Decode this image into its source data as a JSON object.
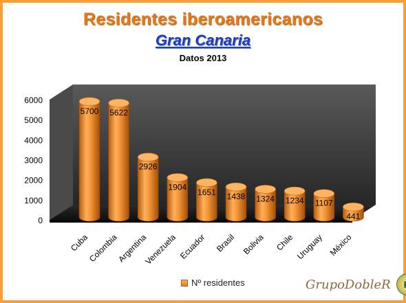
{
  "chart_data": {
    "type": "bar",
    "title": "Residentes iberoamericanos",
    "subtitle": "Gran Canaria",
    "subtitle2": "Datos 2013",
    "categories": [
      "Cuba",
      "Colombia",
      "Argentina",
      "Venezuela",
      "Ecuador",
      "Brasil",
      "Bolivia",
      "Chile",
      "Uruguay",
      "México"
    ],
    "series": [
      {
        "name": "Nº residentes",
        "values": [
          5700,
          5622,
          2926,
          1904,
          1651,
          1438,
          1324,
          1234,
          1107,
          441
        ]
      }
    ],
    "ylim": [
      0,
      6000
    ],
    "yticks": [
      0,
      1000,
      2000,
      3000,
      4000,
      5000,
      6000
    ],
    "style": "3d-cylinder",
    "legend_position": "bottom",
    "grid": false
  },
  "colors": {
    "frame": "#f5a13a",
    "title": "#e07a1f",
    "subtitle": "#1f3fb0",
    "bar": "#f08a24",
    "wall": "#3b3b3b",
    "floor": "#1d1d1d"
  },
  "logo": {
    "text": "GrupoDobleR",
    "seal": "R"
  }
}
